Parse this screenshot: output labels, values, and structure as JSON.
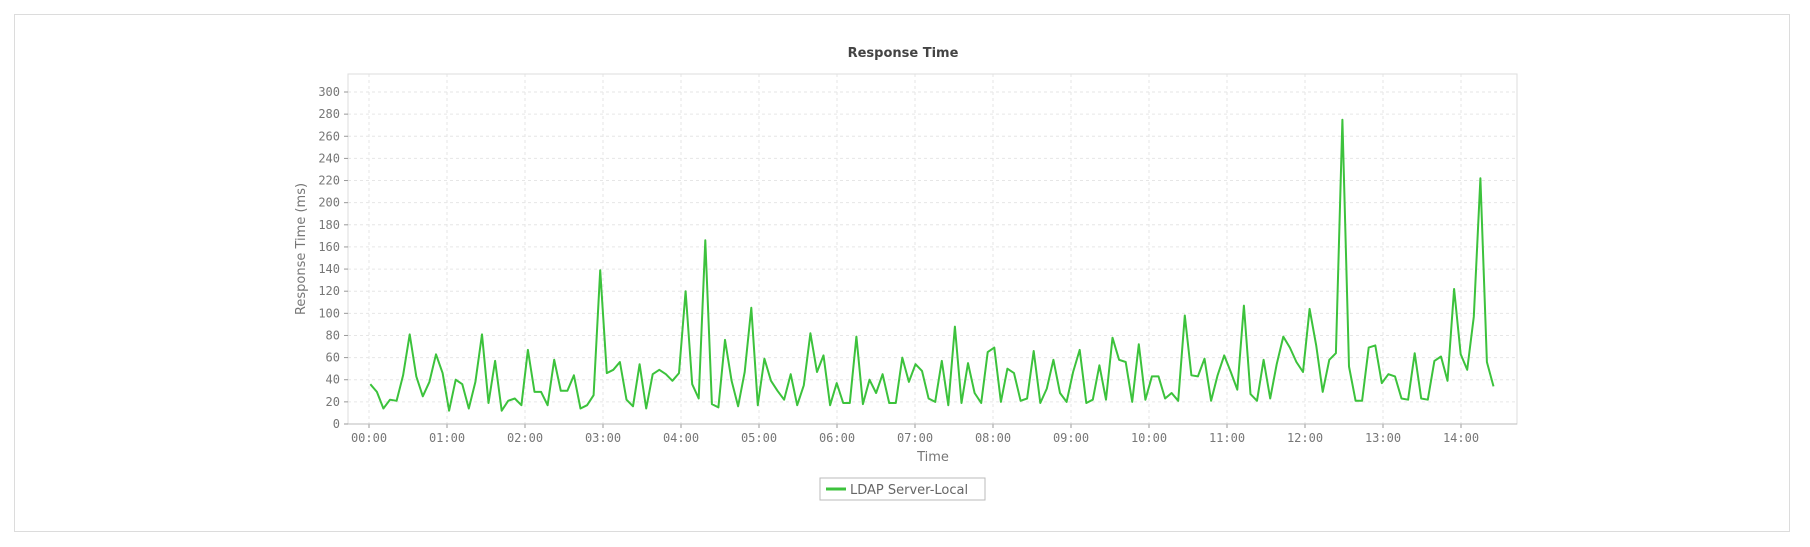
{
  "chart_data": {
    "type": "line",
    "title": "Response Time",
    "xlabel": "Time",
    "ylabel": "Response Time (ms)",
    "ylim": [
      0,
      310
    ],
    "yticks": [
      0,
      20,
      40,
      60,
      80,
      100,
      120,
      140,
      160,
      180,
      200,
      220,
      240,
      260,
      280,
      300
    ],
    "xticks": [
      "00:00",
      "01:00",
      "02:00",
      "03:00",
      "04:00",
      "05:00",
      "06:00",
      "07:00",
      "08:00",
      "09:00",
      "10:00",
      "11:00",
      "12:00",
      "13:00",
      "14:00"
    ],
    "xlim": [
      "00:00",
      "14:41"
    ],
    "x_start": "00:01",
    "interval_minutes": 5,
    "grid": true,
    "legend_position": "bottom",
    "series": [
      {
        "name": "LDAP Server-Local",
        "color": "#3cc23c",
        "values": [
          36,
          29,
          14,
          22,
          21,
          44,
          81,
          43,
          25,
          38,
          63,
          46,
          12,
          40,
          36,
          14,
          38,
          81,
          19,
          57,
          12,
          21,
          23,
          17,
          67,
          29,
          29,
          17,
          58,
          30,
          30,
          44,
          14,
          17,
          26,
          139,
          46,
          49,
          56,
          22,
          16,
          54,
          14,
          45,
          49,
          45,
          39,
          46,
          120,
          36,
          23,
          166,
          18,
          15,
          76,
          39,
          16,
          47,
          105,
          17,
          59,
          39,
          30,
          22,
          45,
          17,
          35,
          82,
          47,
          62,
          17,
          37,
          19,
          19,
          79,
          18,
          40,
          28,
          45,
          19,
          19,
          60,
          38,
          54,
          48,
          23,
          20,
          57,
          17,
          88,
          19,
          55,
          28,
          19,
          65,
          69,
          20,
          50,
          46,
          21,
          23,
          66,
          19,
          32,
          58,
          28,
          20,
          47,
          67,
          19,
          22,
          53,
          22,
          78,
          58,
          56,
          20,
          72,
          22,
          43,
          43,
          23,
          28,
          21,
          98,
          44,
          43,
          59,
          21,
          44,
          62,
          47,
          31,
          107,
          27,
          21,
          58,
          23,
          54,
          79,
          69,
          56,
          47,
          104,
          71,
          29,
          58,
          64,
          275,
          52,
          21,
          21,
          69,
          71,
          37,
          45,
          43,
          23,
          22,
          64,
          23,
          22,
          57,
          61,
          39,
          122,
          63,
          49,
          97,
          222,
          56,
          34
        ]
      }
    ]
  }
}
